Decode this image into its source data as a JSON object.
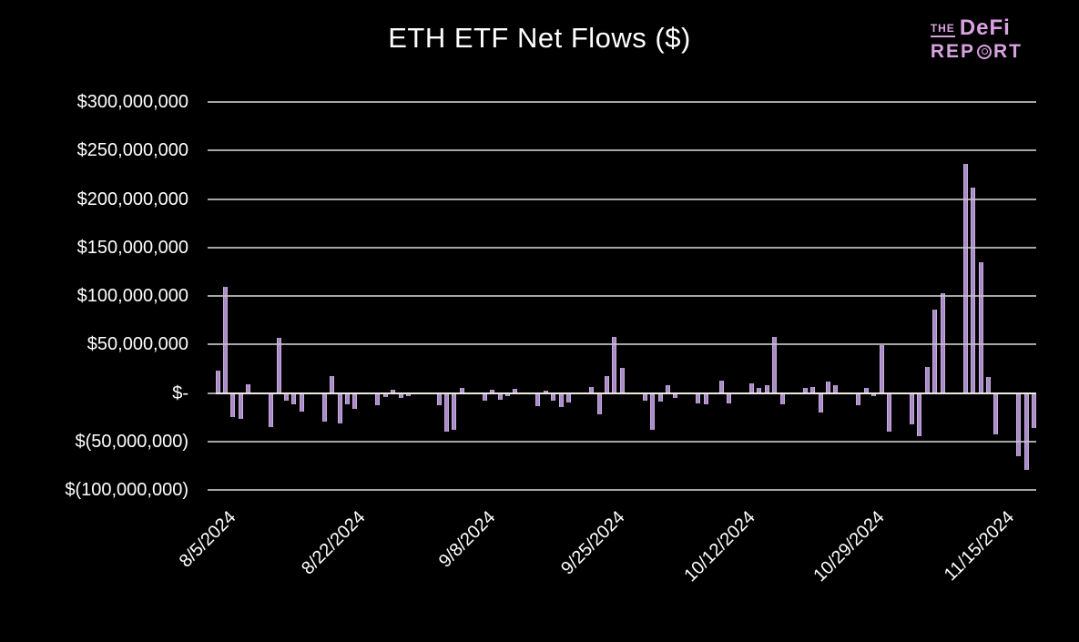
{
  "title": "ETH ETF Net Flows ($)",
  "logo": {
    "the": "THE",
    "defi": "DeFi",
    "rep": "REP",
    "rt": "RT"
  },
  "colors": {
    "background": "#000000",
    "bar_fill": "#a98bc7",
    "bar_edge": "#c9aede",
    "gridline": "#c3c3c3",
    "zero_line": "#eceadf",
    "text": "#ffffff",
    "logo": "#d9a2e0"
  },
  "chart_data": {
    "type": "bar",
    "title": "ETH ETF Net Flows ($)",
    "unit": "USD millions, daily net flow",
    "grid": true,
    "legend": null,
    "ylim_millions": [
      -100,
      300
    ],
    "y_ticks": {
      "labels": [
        "$300,000,000",
        "$250,000,000",
        "$200,000,000",
        "$150,000,000",
        "$100,000,000",
        "$50,000,000",
        "$-",
        "$(50,000,000)",
        "$(100,000,000)"
      ],
      "values_millions": [
        300,
        250,
        200,
        150,
        100,
        50,
        0,
        -50,
        -100
      ]
    },
    "x_tick_labels": [
      "8/5/2024",
      "8/22/2024",
      "9/8/2024",
      "9/25/2024",
      "10/12/2024",
      "10/29/2024",
      "11/15/2024"
    ],
    "x_tick_indices": [
      0,
      17,
      34,
      51,
      68,
      85,
      102
    ],
    "x": [
      "8/5/2024",
      "8/6/2024",
      "8/7/2024",
      "8/8/2024",
      "8/9/2024",
      "8/10/2024",
      "8/11/2024",
      "8/12/2024",
      "8/13/2024",
      "8/14/2024",
      "8/15/2024",
      "8/16/2024",
      "8/17/2024",
      "8/18/2024",
      "8/19/2024",
      "8/20/2024",
      "8/21/2024",
      "8/22/2024",
      "8/23/2024",
      "8/24/2024",
      "8/25/2024",
      "8/26/2024",
      "8/27/2024",
      "8/28/2024",
      "8/29/2024",
      "8/30/2024",
      "8/31/2024",
      "9/1/2024",
      "9/2/2024",
      "9/3/2024",
      "9/4/2024",
      "9/5/2024",
      "9/6/2024",
      "9/7/2024",
      "9/8/2024",
      "9/9/2024",
      "9/10/2024",
      "9/11/2024",
      "9/12/2024",
      "9/13/2024",
      "9/14/2024",
      "9/15/2024",
      "9/16/2024",
      "9/17/2024",
      "9/18/2024",
      "9/19/2024",
      "9/20/2024",
      "9/21/2024",
      "9/22/2024",
      "9/23/2024",
      "9/24/2024",
      "9/25/2024",
      "9/26/2024",
      "9/27/2024",
      "9/28/2024",
      "9/29/2024",
      "9/30/2024",
      "10/1/2024",
      "10/2/2024",
      "10/3/2024",
      "10/4/2024",
      "10/5/2024",
      "10/6/2024",
      "10/7/2024",
      "10/8/2024",
      "10/9/2024",
      "10/10/2024",
      "10/11/2024",
      "10/12/2024",
      "10/13/2024",
      "10/14/2024",
      "10/15/2024",
      "10/16/2024",
      "10/17/2024",
      "10/18/2024",
      "10/19/2024",
      "10/20/2024",
      "10/21/2024",
      "10/22/2024",
      "10/23/2024",
      "10/24/2024",
      "10/25/2024",
      "10/26/2024",
      "10/27/2024",
      "10/28/2024",
      "10/29/2024",
      "10/30/2024",
      "10/31/2024",
      "11/1/2024",
      "11/2/2024",
      "11/3/2024",
      "11/4/2024",
      "11/5/2024",
      "11/6/2024",
      "11/7/2024",
      "11/8/2024",
      "11/9/2024",
      "11/10/2024",
      "11/11/2024",
      "11/12/2024",
      "11/13/2024",
      "11/14/2024",
      "11/15/2024",
      "11/16/2024",
      "11/17/2024",
      "11/18/2024",
      "11/19/2024",
      "11/20/2024"
    ],
    "values_millions": [
      23,
      109,
      -25,
      -27,
      9,
      0,
      0,
      -35,
      57,
      -8,
      -12,
      -19,
      0,
      0,
      -30,
      17,
      -31,
      -12,
      -16,
      0,
      0,
      -13,
      -4,
      3,
      -5,
      -3,
      0,
      0,
      0,
      -13,
      -40,
      -38,
      5,
      0,
      0,
      -8,
      3,
      -7,
      -3,
      4,
      0,
      0,
      -14,
      2,
      -8,
      -15,
      -10,
      0,
      0,
      6,
      -22,
      17,
      58,
      26,
      0,
      0,
      -8,
      -38,
      -9,
      8,
      -5,
      0,
      0,
      -11,
      -12,
      0,
      13,
      -11,
      0,
      0,
      10,
      5,
      8,
      58,
      -12,
      0,
      0,
      5,
      6,
      -20,
      12,
      8,
      0,
      0,
      -13,
      5,
      -3,
      49,
      -40,
      0,
      0,
      -32,
      -45,
      27,
      86,
      103,
      0,
      0,
      236,
      212,
      135,
      16,
      -43,
      0,
      0,
      -65,
      -79,
      -36
    ]
  }
}
